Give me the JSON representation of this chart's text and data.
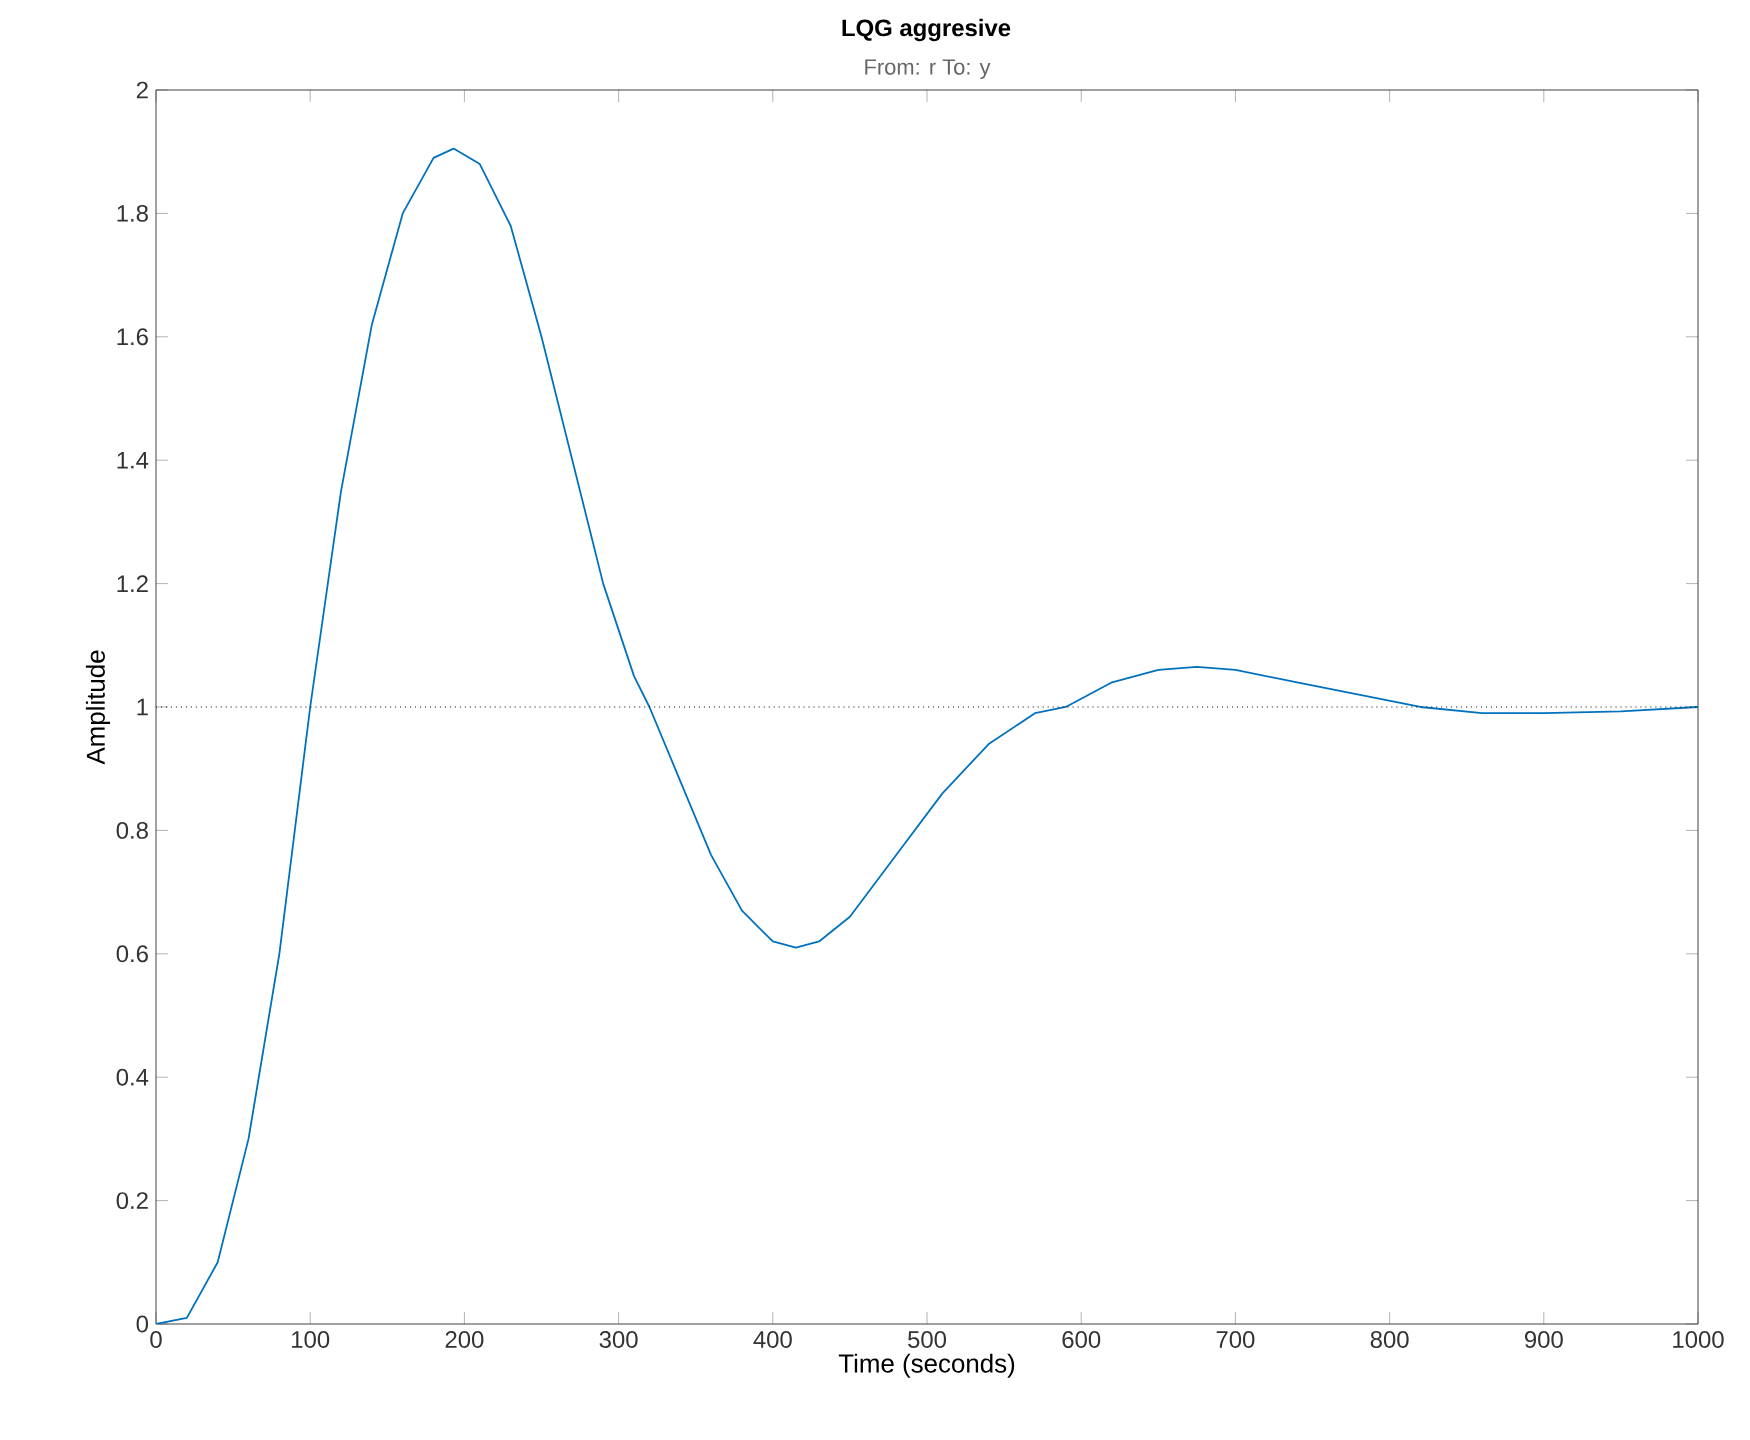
{
  "chart_data": {
    "type": "line",
    "title": "LQG aggresive",
    "subtitle": "From: r  To: y",
    "xlabel": "Time (seconds)",
    "ylabel": "Amplitude",
    "x": [
      0,
      20,
      40,
      60,
      80,
      100,
      120,
      140,
      160,
      180,
      193,
      210,
      230,
      250,
      270,
      290,
      310,
      320,
      340,
      360,
      380,
      400,
      415,
      430,
      450,
      480,
      510,
      540,
      570,
      590,
      620,
      650,
      675,
      700,
      740,
      780,
      820,
      860,
      900,
      950,
      1000
    ],
    "values": [
      0,
      0.01,
      0.1,
      0.3,
      0.6,
      1.0,
      1.35,
      1.62,
      1.8,
      1.89,
      1.905,
      1.88,
      1.78,
      1.6,
      1.4,
      1.2,
      1.05,
      1.0,
      0.88,
      0.76,
      0.67,
      0.62,
      0.61,
      0.62,
      0.66,
      0.76,
      0.86,
      0.94,
      0.99,
      1.0,
      1.04,
      1.06,
      1.065,
      1.06,
      1.04,
      1.02,
      1.0,
      0.99,
      0.99,
      0.993,
      1.0
    ],
    "color": "#0072bd",
    "xlim": [
      0,
      1000
    ],
    "ylim": [
      0,
      2
    ],
    "xticks": [
      0,
      100,
      200,
      300,
      400,
      500,
      600,
      700,
      800,
      900,
      1000
    ],
    "yticks": [
      0,
      0.2,
      0.4,
      0.6,
      0.8,
      1,
      1.2,
      1.4,
      1.6,
      1.8,
      2
    ],
    "ref_lines": [
      {
        "axis": "y",
        "value": 1,
        "color": "#000000",
        "line_style": "dotted"
      }
    ],
    "grid": false
  }
}
